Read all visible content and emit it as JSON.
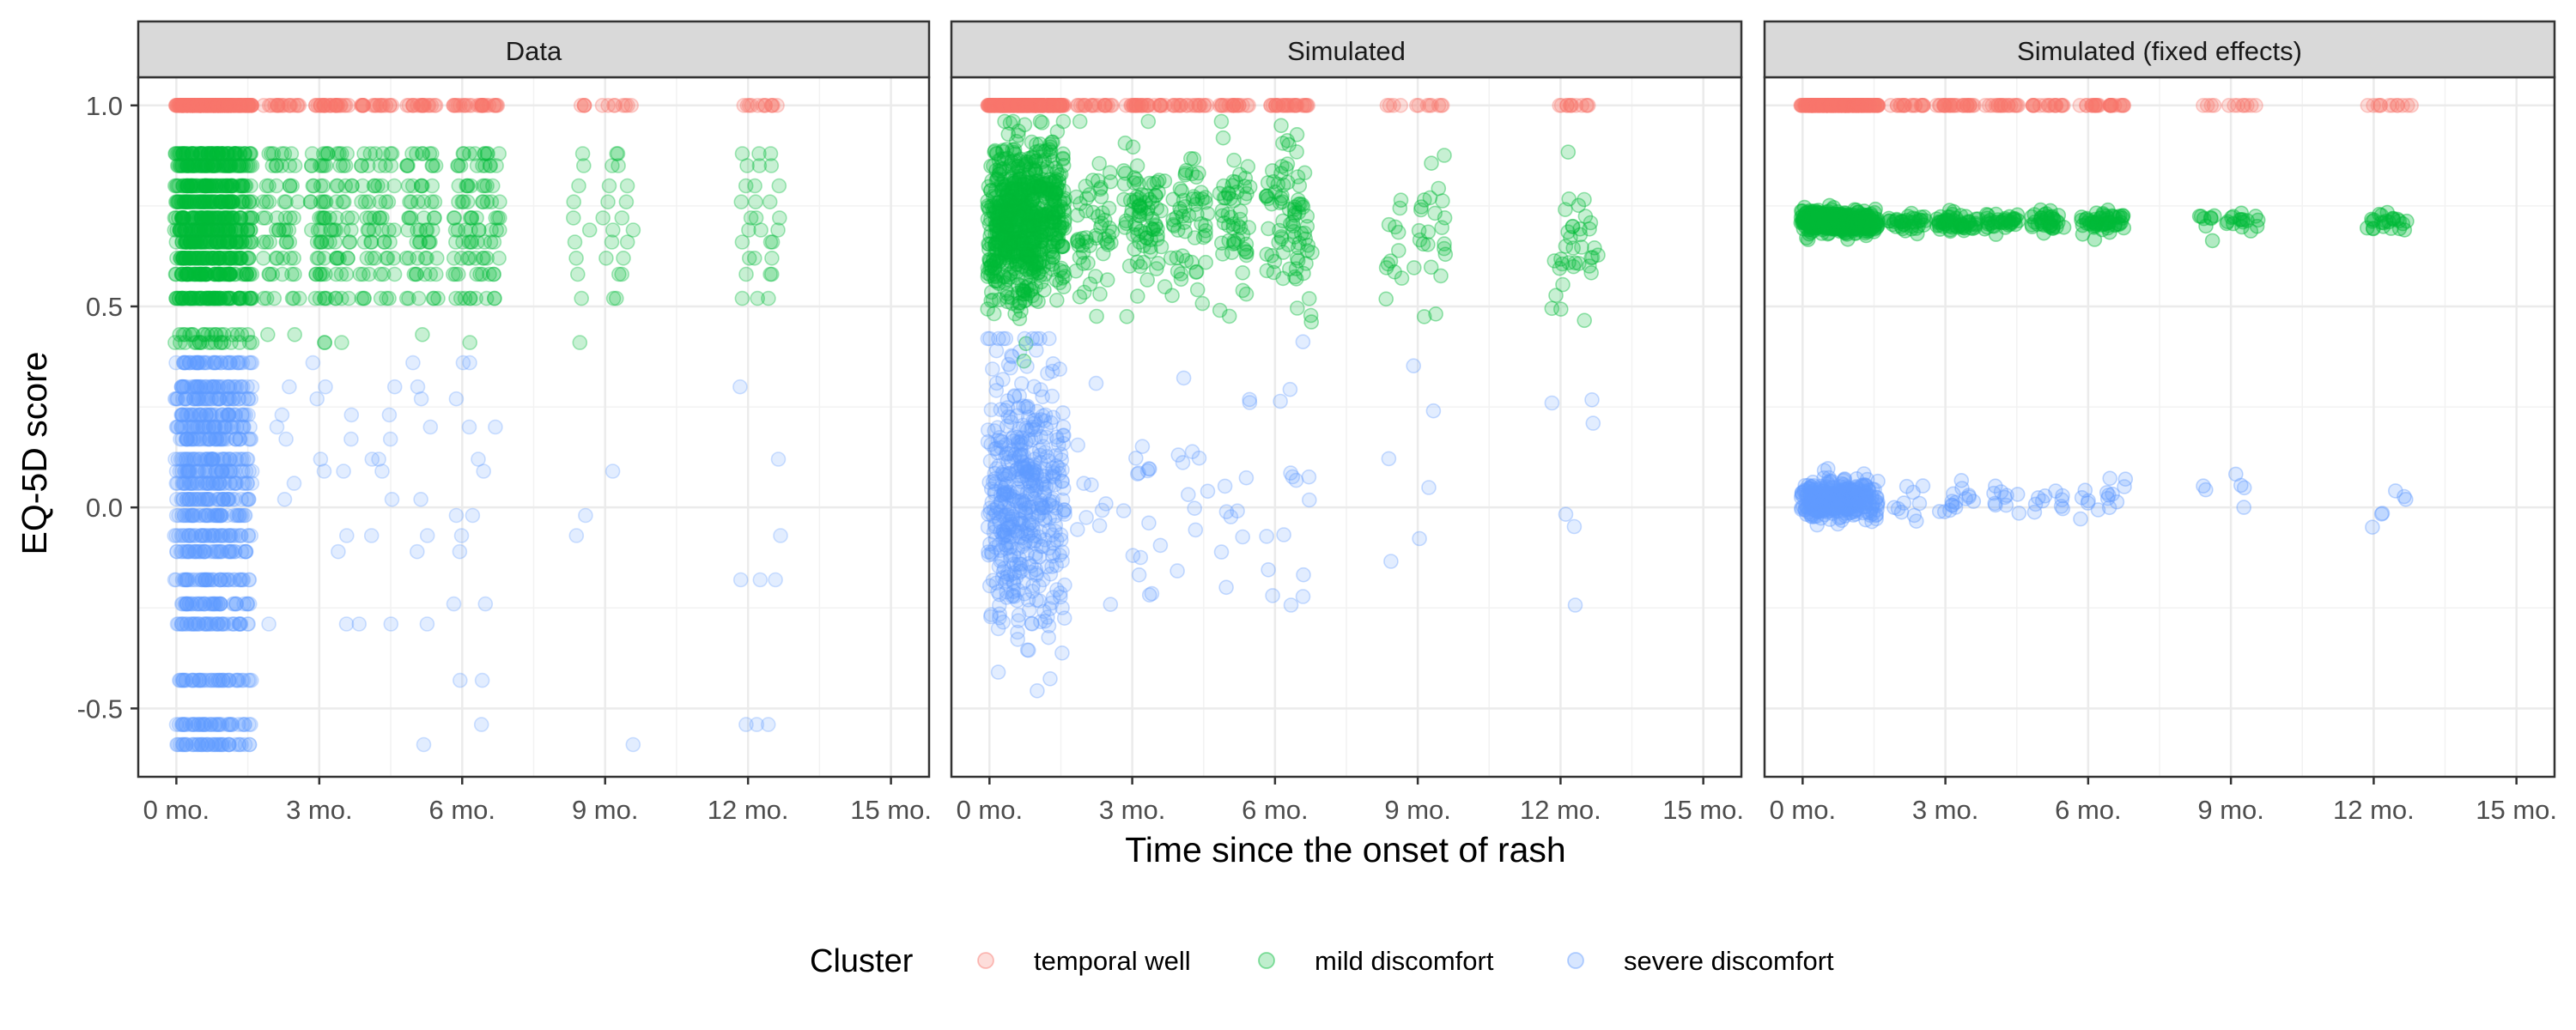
{
  "chart_data": {
    "type": "scatter",
    "facets": [
      "Data",
      "Simulated",
      "Simulated (fixed effects)"
    ],
    "xlabel": "Time since the onset of rash",
    "ylabel": "EQ-5D score",
    "x_unit": "months",
    "x_ticks": [
      0,
      3,
      6,
      9,
      12,
      15
    ],
    "x_tick_labels": [
      "0 mo.",
      "3 mo.",
      "6 mo.",
      "9 mo.",
      "12 mo.",
      "15 mo."
    ],
    "y_ticks": [
      -0.5,
      0,
      0.5,
      1
    ],
    "y_tick_labels": [
      "-0.5",
      "0.0",
      "0.5",
      "1.0"
    ],
    "xlim": [
      -0.8,
      15.8
    ],
    "ylim": [
      -0.67,
      1.07
    ],
    "grid": true,
    "legend": {
      "title": "Cluster",
      "position": "bottom",
      "items": [
        "temporal well",
        "mild discomfort",
        "severe discomfort"
      ]
    },
    "series": [
      {
        "name": "temporal well",
        "color": "#F8766D"
      },
      {
        "name": "mild discomfort",
        "color": "#00BA38"
      },
      {
        "name": "severe discomfort",
        "color": "#619CFF"
      }
    ],
    "visit_times_months": [
      0.1,
      0.25,
      0.4,
      0.55,
      0.7,
      0.85,
      1.0,
      1.2,
      1.45,
      2.0,
      2.4,
      3.0,
      3.2,
      3.5,
      4.0,
      4.4,
      5.0,
      5.3,
      6.0,
      6.3,
      6.6,
      8.5,
      9.1,
      9.4,
      12.0,
      12.3,
      12.6
    ],
    "observed_scores": {
      "temporal well": [
        1.0
      ],
      "mild discomfort": [
        0.52,
        0.58,
        0.62,
        0.66,
        0.69,
        0.72,
        0.76,
        0.8,
        0.85,
        0.88,
        0.43,
        0.41
      ],
      "severe discomfort": [
        0.36,
        0.3,
        0.27,
        0.23,
        0.2,
        0.17,
        0.12,
        0.09,
        0.06,
        0.02,
        -0.02,
        -0.07,
        -0.11,
        -0.18,
        -0.24,
        -0.29,
        -0.43,
        -0.54,
        -0.59
      ]
    },
    "simulated_ranges": {
      "temporal well": [
        1.0,
        1.0
      ],
      "mild discomfort": [
        0.36,
        0.96
      ],
      "severe discomfort": [
        -0.58,
        0.42
      ]
    },
    "fixed_effects_means": {
      "temporal well": 1.0,
      "mild discomfort": 0.71,
      "severe discomfort": 0.02
    }
  }
}
